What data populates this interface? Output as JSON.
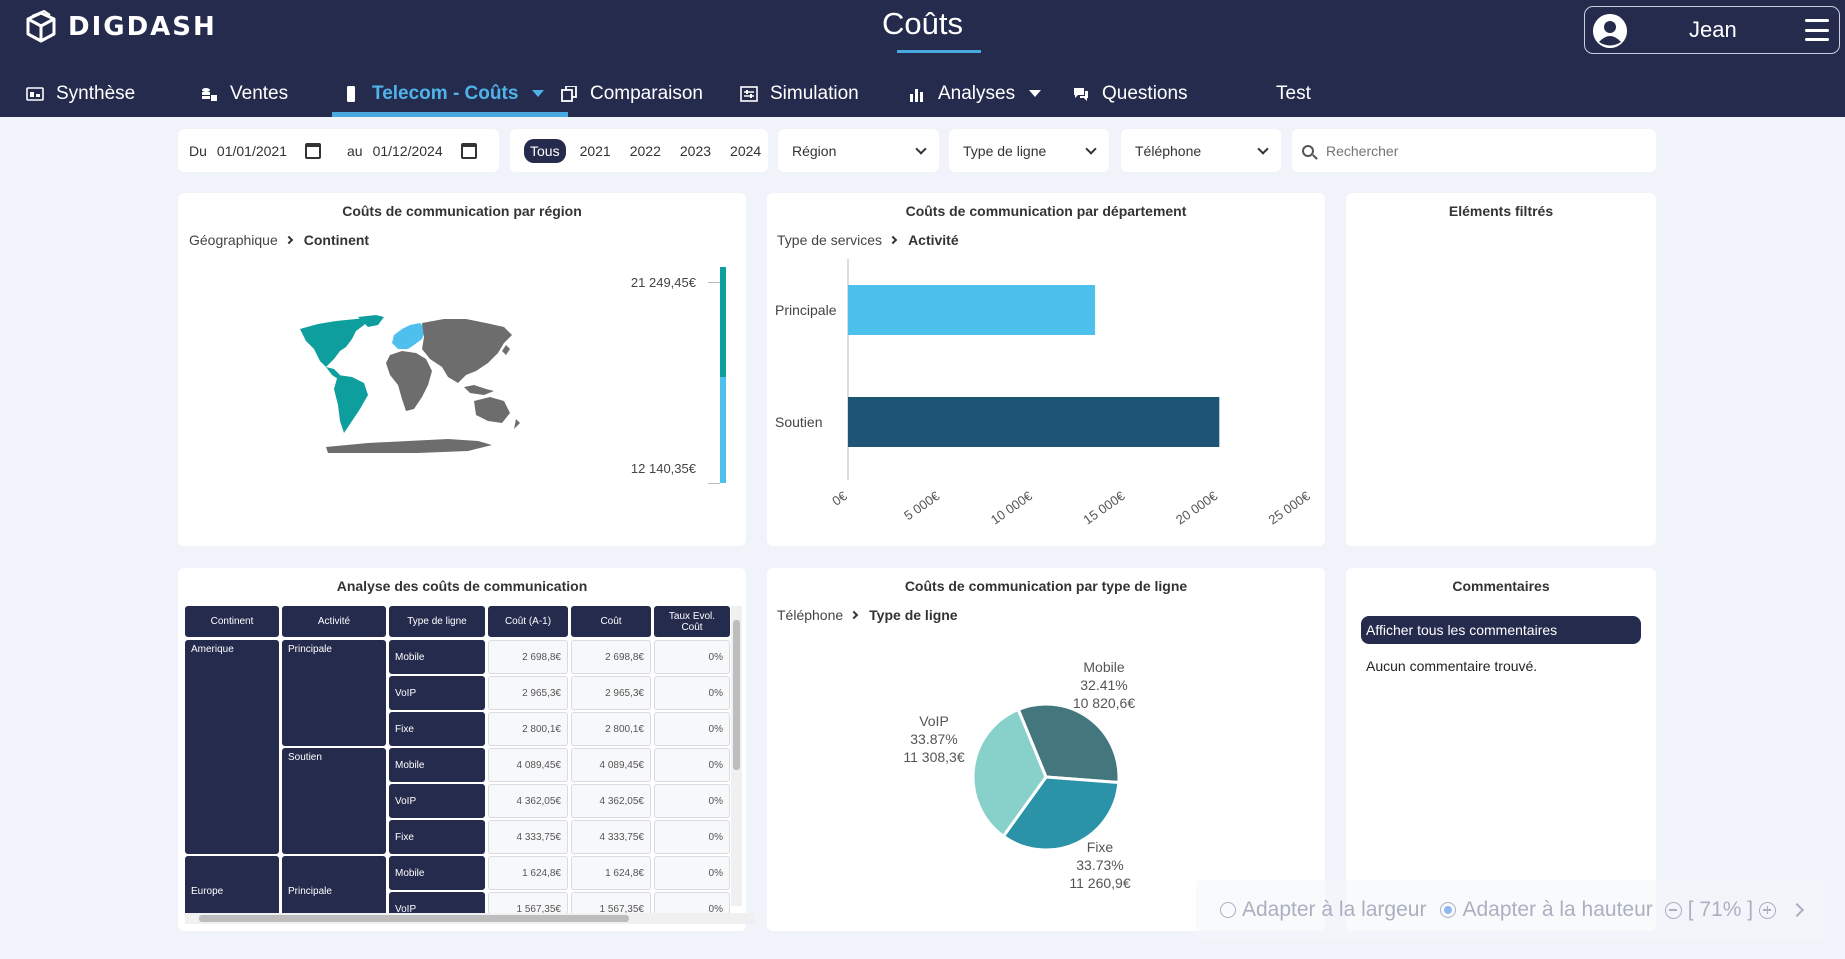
{
  "header": {
    "logo_text": "DIGDASH",
    "title": "Coûts",
    "user_name": "Jean"
  },
  "nav": [
    {
      "label": "Synthèse",
      "icon": "dashboard-icon"
    },
    {
      "label": "Ventes",
      "icon": "coins-icon"
    },
    {
      "label": "Telecom - Coûts",
      "icon": "phone-icon",
      "active": true
    },
    {
      "label": "Comparaison",
      "icon": "copy-icon"
    },
    {
      "label": "Simulation",
      "icon": "sliders-icon"
    },
    {
      "label": "Analyses",
      "icon": "bar-chart-icon"
    },
    {
      "label": "Questions",
      "icon": "chat-icon"
    },
    {
      "label": "Test"
    }
  ],
  "filters": {
    "date_from_label": "Du",
    "date_from": "01/01/2021",
    "date_to_label": "au",
    "date_to": "01/12/2024",
    "years": [
      "Tous",
      "2021",
      "2022",
      "2023",
      "2024"
    ],
    "selected_year": "Tous",
    "region": "Région",
    "type_ligne": "Type de ligne",
    "telephone": "Téléphone",
    "search_placeholder": "Rechercher"
  },
  "panel_region": {
    "title": "Coûts de communication par région",
    "crumb_parent": "Géographique",
    "crumb_current": "Continent",
    "legend_max": "21 249,45€",
    "legend_min": "12 140,35€",
    "colors": {
      "high": "#0e9e9e",
      "low": "#4fc0ee",
      "none": "#6d6d6d"
    }
  },
  "panel_dept": {
    "title": "Coûts de communication par département",
    "crumb_parent": "Type de services",
    "crumb_current": "Activité"
  },
  "panel_filtered": {
    "title": "Eléments filtrés"
  },
  "panel_table": {
    "title": "Analyse des coûts de communication",
    "columns": [
      "Continent",
      "Activité",
      "Type de ligne",
      "Coût (A-1)",
      "Coût",
      "Taux Evol. Coût"
    ],
    "groups": [
      {
        "continent": "Amerique",
        "activities": [
          {
            "activity": "Principale",
            "rows": [
              {
                "type": "Mobile",
                "prev": "2 698,8€",
                "cost": "2 698,8€",
                "rate": "0%"
              },
              {
                "type": "VoIP",
                "prev": "2 965,3€",
                "cost": "2 965,3€",
                "rate": "0%"
              },
              {
                "type": "Fixe",
                "prev": "2 800,1€",
                "cost": "2 800,1€",
                "rate": "0%"
              }
            ]
          },
          {
            "activity": "Soutien",
            "rows": [
              {
                "type": "Mobile",
                "prev": "4 089,45€",
                "cost": "4 089,45€",
                "rate": "0%"
              },
              {
                "type": "VoIP",
                "prev": "4 362,05€",
                "cost": "4 362,05€",
                "rate": "0%"
              },
              {
                "type": "Fixe",
                "prev": "4 333,75€",
                "cost": "4 333,75€",
                "rate": "0%"
              }
            ]
          }
        ]
      },
      {
        "continent": "Europe",
        "activities": [
          {
            "activity": "Principale",
            "rows": [
              {
                "type": "Mobile",
                "prev": "1 624,8€",
                "cost": "1 624,8€",
                "rate": "0%"
              },
              {
                "type": "VoIP",
                "prev": "1 567,35€",
                "cost": "1 567,35€",
                "rate": "0%"
              }
            ]
          }
        ]
      }
    ]
  },
  "panel_pie": {
    "title": "Coûts de communication par type de ligne",
    "crumb_parent": "Téléphone",
    "crumb_current": "Type de ligne"
  },
  "panel_comments": {
    "title": "Commentaires",
    "show_all": "Afficher tous les commentaires",
    "none": "Aucun commentaire trouvé."
  },
  "fit_bar": {
    "fit_width": "Adapter à la largeur",
    "fit_height": "Adapter à la hauteur",
    "selected": "height",
    "zoom": "[ 71% ]"
  },
  "chart_data": [
    {
      "type": "bar",
      "orientation": "horizontal",
      "categories": [
        "Principale",
        "Soutien"
      ],
      "values": [
        13340,
        20050
      ],
      "colors": [
        "#4dc0ee",
        "#1e5574"
      ],
      "xlim": [
        0,
        25000
      ],
      "x_ticks": [
        "0€",
        "5 000€",
        "10 000€",
        "15 000€",
        "20 000€",
        "25 000€"
      ]
    },
    {
      "type": "pie",
      "slices": [
        {
          "label": "Mobile",
          "percent": "32.41%",
          "value": "10 820,6€",
          "share": 32.41,
          "color": "#43767d"
        },
        {
          "label": "Fixe",
          "percent": "33.73%",
          "value": "11 260,9€",
          "share": 33.73,
          "color": "#2b93a8"
        },
        {
          "label": "VoIP",
          "percent": "33.87%",
          "value": "11 308,3€",
          "share": 33.87,
          "color": "#88d1cb"
        }
      ]
    }
  ]
}
